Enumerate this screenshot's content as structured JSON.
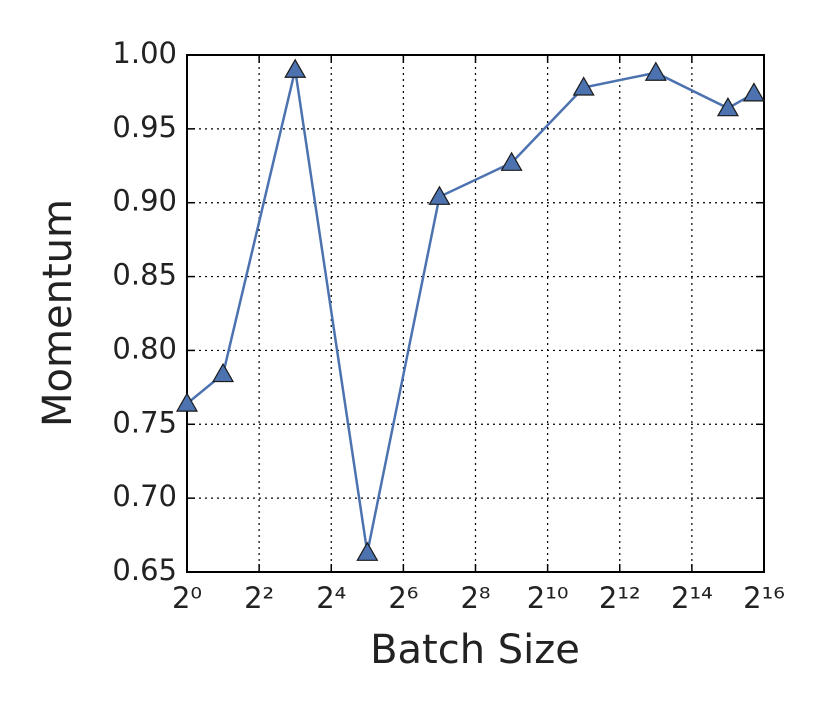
{
  "chart_data": {
    "type": "line",
    "x_label": "Batch Size",
    "y_label": "Momentum",
    "x": [
      1,
      2,
      8,
      32,
      128,
      512,
      2048,
      8192,
      32768,
      54000
    ],
    "values": [
      0.764,
      0.784,
      0.99,
      0.663,
      0.904,
      0.927,
      0.978,
      0.988,
      0.964,
      0.974
    ],
    "color": "#4c72b0",
    "marker": "triangle",
    "xscale": "log",
    "xlog_base": 2,
    "xlim": [
      1,
      65536
    ],
    "xticks": [
      {
        "value": 1,
        "label": "2⁰"
      },
      {
        "value": 4,
        "label": "2²"
      },
      {
        "value": 16,
        "label": "2⁴"
      },
      {
        "value": 64,
        "label": "2⁶"
      },
      {
        "value": 256,
        "label": "2⁸"
      },
      {
        "value": 1024,
        "label": "2¹⁰"
      },
      {
        "value": 4096,
        "label": "2¹²"
      },
      {
        "value": 16384,
        "label": "2¹⁴"
      },
      {
        "value": 65536,
        "label": "2¹⁶"
      }
    ],
    "ylim": [
      0.65,
      1.0
    ],
    "yticks": [
      0.65,
      {
        "value": 0.7,
        "label": "0.70"
      },
      0.75,
      {
        "value": 0.8,
        "label": "0.80"
      },
      0.85,
      {
        "value": 0.9,
        "label": "0.90"
      },
      0.95,
      {
        "value": 1.0,
        "label": "1.00"
      }
    ],
    "grid": true
  }
}
